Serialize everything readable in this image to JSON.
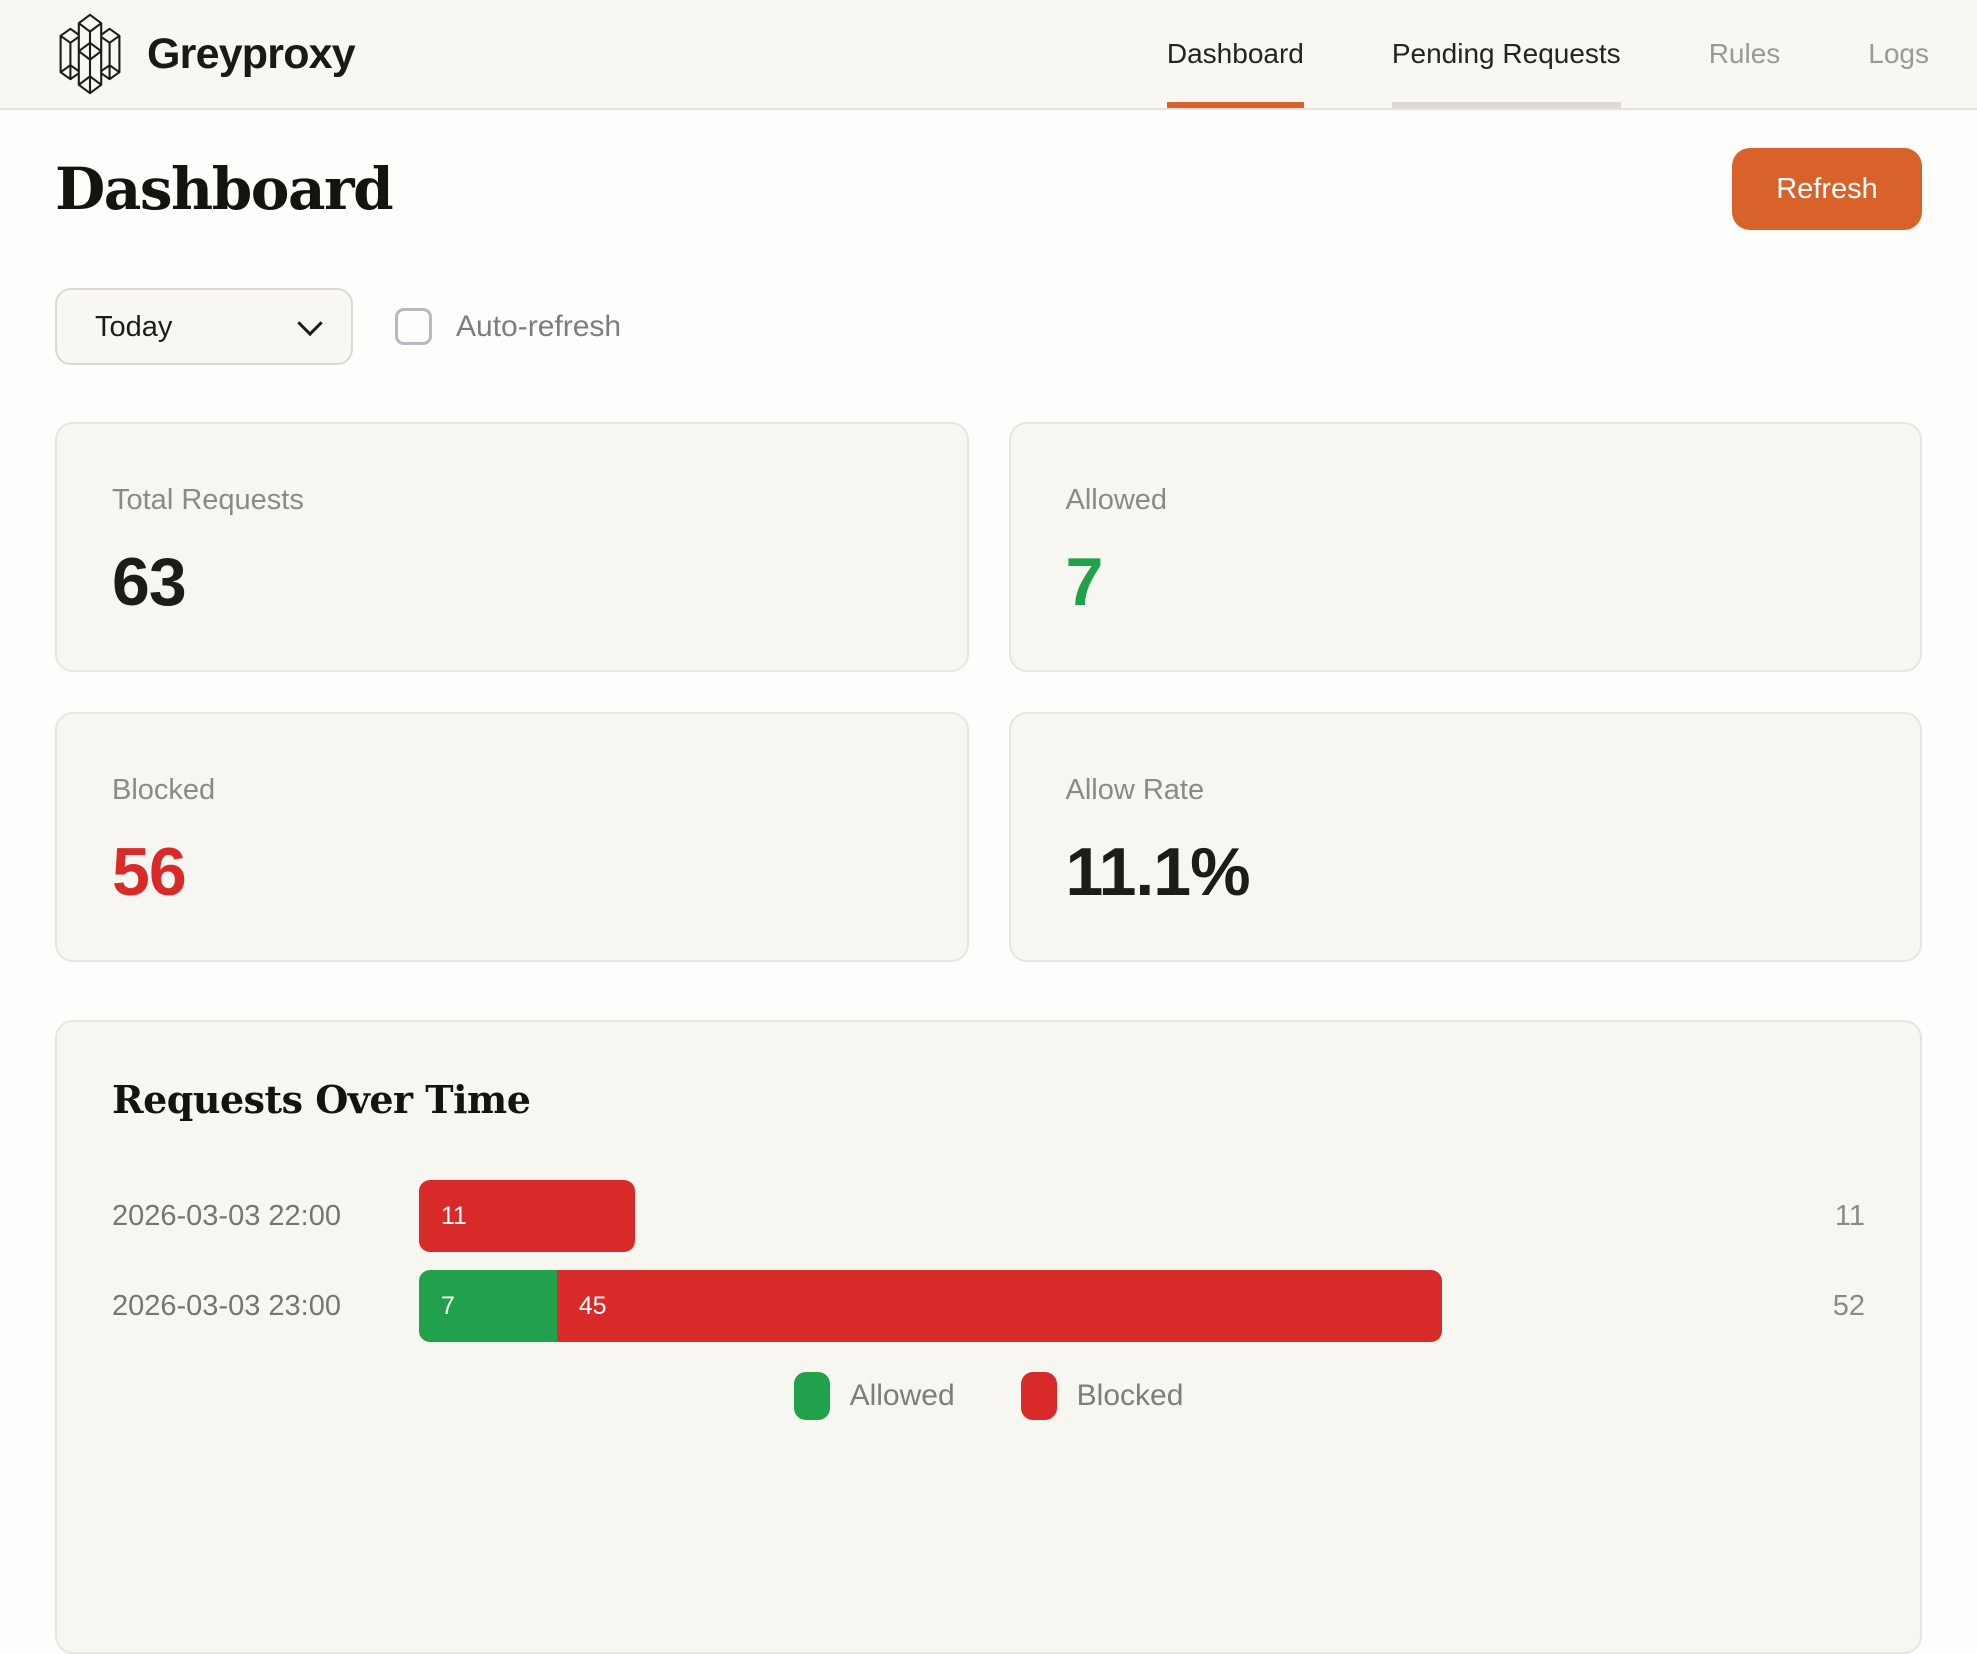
{
  "brand": {
    "name": "Greyproxy"
  },
  "nav": {
    "items": [
      {
        "label": "Dashboard"
      },
      {
        "label": "Pending Requests"
      },
      {
        "label": "Rules"
      },
      {
        "label": "Logs"
      }
    ],
    "active": "Dashboard"
  },
  "page": {
    "title": "Dashboard",
    "refresh_label": "Refresh"
  },
  "controls": {
    "range_selected": "Today",
    "auto_refresh_label": "Auto-refresh",
    "auto_refresh_checked": false
  },
  "stats": [
    {
      "label": "Total Requests",
      "value": "63",
      "color": "#1d1c19"
    },
    {
      "label": "Allowed",
      "value": "7",
      "color": "#21a14b"
    },
    {
      "label": "Blocked",
      "value": "56",
      "color": "#d92a2a"
    },
    {
      "label": "Allow Rate",
      "value": "11.1%",
      "color": "#1d1c19"
    }
  ],
  "chart_data": {
    "type": "bar",
    "orientation": "horizontal",
    "stacked": true,
    "title": "Requests Over Time",
    "categories": [
      "2026-03-03 22:00",
      "2026-03-03 23:00"
    ],
    "series": [
      {
        "name": "Allowed",
        "color": "#21a14b",
        "values": [
          0,
          7
        ]
      },
      {
        "name": "Blocked",
        "color": "#d92a2a",
        "values": [
          11,
          45
        ]
      }
    ],
    "totals": [
      11,
      52
    ],
    "xlim": [
      0,
      69
    ],
    "legend": [
      "Allowed",
      "Blocked"
    ],
    "legend_position": "bottom",
    "grid": false
  },
  "colors": {
    "accent_orange": "#d9622b",
    "green": "#21a14b",
    "red": "#d92a2a",
    "header_bg": "#f8f7f3",
    "card_bg": "#f7f6f1",
    "page_bg": "#fdfdfb",
    "muted_text": "#8b8a85"
  }
}
